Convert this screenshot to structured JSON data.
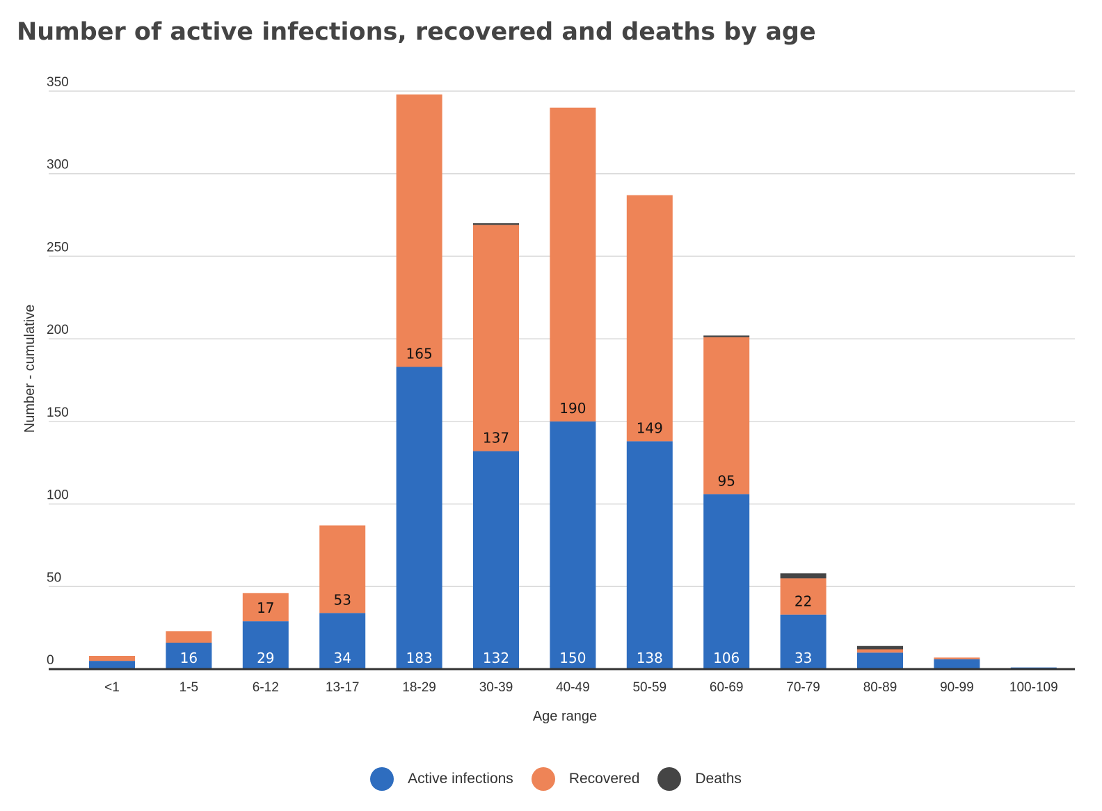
{
  "title": "Number of active infections, recovered and deaths by age",
  "colors": {
    "active": "#2E6DBF",
    "recovered": "#EE8457",
    "deaths": "#454545"
  },
  "chart_data": {
    "type": "bar",
    "stacked": true,
    "title": "Number of active infections, recovered and deaths by age",
    "xlabel": "Age range",
    "ylabel": "Number - cumulative",
    "ylim": [
      0,
      350
    ],
    "yticks": [
      0,
      50,
      100,
      150,
      200,
      250,
      300,
      350
    ],
    "grid": true,
    "legend_position": "bottom",
    "categories": [
      "<1",
      "1-5",
      "6-12",
      "13-17",
      "18-29",
      "30-39",
      "40-49",
      "50-59",
      "60-69",
      "70-79",
      "80-89",
      "90-99",
      "100-109"
    ],
    "series": [
      {
        "name": "Active infections",
        "color": "#2E6DBF",
        "values": [
          5,
          16,
          29,
          34,
          183,
          132,
          150,
          138,
          106,
          33,
          10,
          6,
          1
        ],
        "labels": [
          "",
          "16",
          "29",
          "34",
          "183",
          "132",
          "150",
          "138",
          "106",
          "33",
          "",
          "",
          ""
        ]
      },
      {
        "name": "Recovered",
        "color": "#EE8457",
        "values": [
          3,
          7,
          17,
          53,
          165,
          137,
          190,
          149,
          95,
          22,
          2,
          1,
          0
        ],
        "labels": [
          "",
          "",
          "17",
          "53",
          "165",
          "137",
          "190",
          "149",
          "95",
          "22",
          "",
          "",
          ""
        ]
      },
      {
        "name": "Deaths",
        "color": "#454545",
        "values": [
          0,
          0,
          0,
          0,
          0,
          1,
          0,
          0,
          1,
          3,
          2,
          0,
          0
        ],
        "labels": [
          "",
          "",
          "",
          "",
          "",
          "",
          "",
          "",
          "",
          "",
          "",
          "",
          ""
        ]
      }
    ]
  }
}
